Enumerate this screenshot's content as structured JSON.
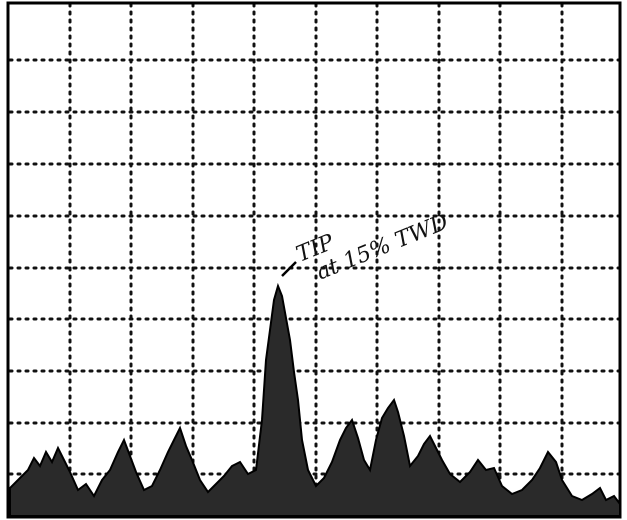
{
  "annotation": {
    "line1": "TIP",
    "line2": "at 15% TWD"
  }
}
